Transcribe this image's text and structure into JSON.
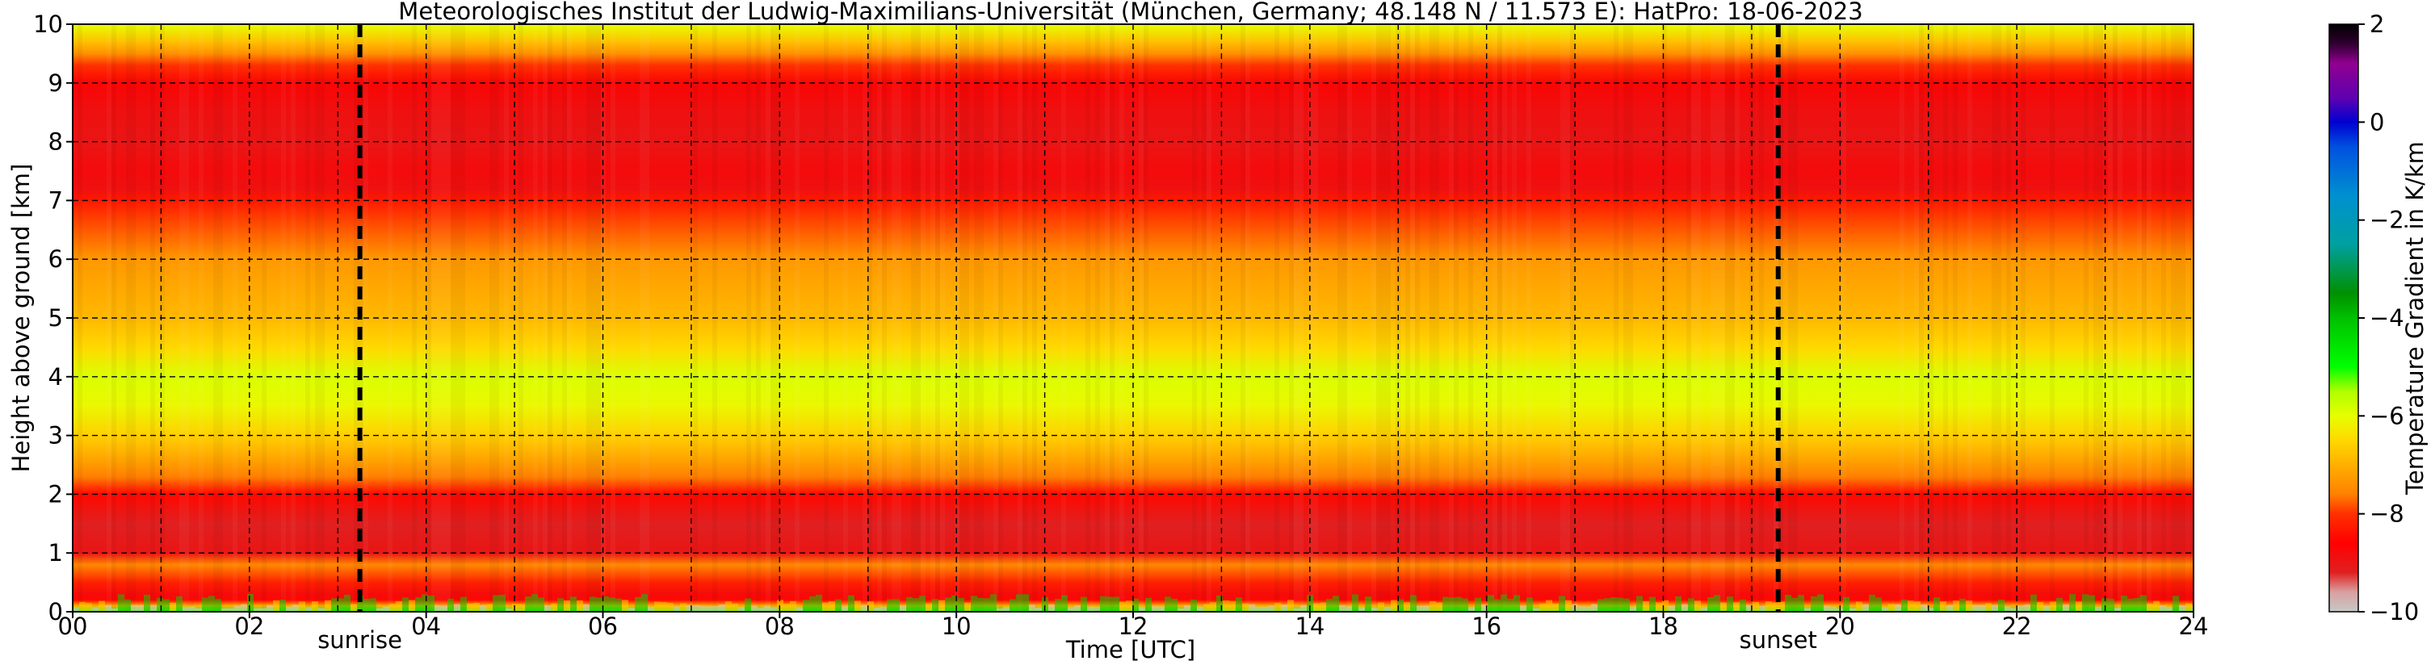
{
  "chart_data": {
    "type": "heatmap",
    "title": "Meteorologisches Institut der Ludwig-Maximilians-Universität (München, Germany; 48.148 N / 11.573 E):    HatPro: 18-06-2023",
    "xlabel": "Time [UTC]",
    "ylabel": "Height above ground [km]",
    "xlim": [
      0,
      24
    ],
    "ylim": [
      0,
      10
    ],
    "x_ticks": [
      "00",
      "02",
      "04",
      "06",
      "08",
      "10",
      "12",
      "14",
      "16",
      "18",
      "20",
      "22",
      "24"
    ],
    "y_ticks": [
      "0",
      "1",
      "2",
      "3",
      "4",
      "5",
      "6",
      "7",
      "8",
      "9",
      "10"
    ],
    "grid": true,
    "colorbar": {
      "label": "Temperature Gradient in K/km",
      "range": [
        -10,
        2
      ],
      "ticks": [
        "−10",
        "−8",
        "−6",
        "−4",
        "−2",
        "0",
        "2"
      ],
      "colors": [
        {
          "value": -10,
          "color": "#c8c8c8"
        },
        {
          "value": -9.6,
          "color": "#d9a0a0"
        },
        {
          "value": -9.2,
          "color": "#e02020"
        },
        {
          "value": -8.6,
          "color": "#ff0000"
        },
        {
          "value": -8.0,
          "color": "#ff3000"
        },
        {
          "value": -7.6,
          "color": "#ff8000"
        },
        {
          "value": -7.0,
          "color": "#ffb000"
        },
        {
          "value": -6.5,
          "color": "#ffd800"
        },
        {
          "value": -6.0,
          "color": "#e6ff00"
        },
        {
          "value": -5.5,
          "color": "#b0ff00"
        },
        {
          "value": -5.0,
          "color": "#00ff00"
        },
        {
          "value": -4.0,
          "color": "#00c000"
        },
        {
          "value": -3.5,
          "color": "#009000"
        },
        {
          "value": -2.5,
          "color": "#00a0a0"
        },
        {
          "value": -1.5,
          "color": "#0090d0"
        },
        {
          "value": -0.5,
          "color": "#0050e0"
        },
        {
          "value": 0.0,
          "color": "#0000d0"
        },
        {
          "value": 0.5,
          "color": "#6000b0"
        },
        {
          "value": 1.2,
          "color": "#900090"
        },
        {
          "value": 1.6,
          "color": "#300030"
        },
        {
          "value": 2.0,
          "color": "#000000"
        }
      ]
    },
    "profile_km": [
      0.0,
      0.1,
      0.2,
      0.3,
      0.5,
      0.8,
      1.0,
      1.5,
      2.0,
      2.3,
      2.7,
      3.0,
      3.5,
      4.0,
      4.5,
      5.0,
      5.5,
      6.0,
      6.5,
      7.0,
      7.2,
      7.5,
      8.0,
      8.5,
      9.0,
      9.3,
      9.5,
      9.7,
      10.0
    ],
    "profile_gradient": [
      -5.0,
      -7.0,
      -8.5,
      -8.8,
      -8.2,
      -7.5,
      -9.0,
      -9.2,
      -8.5,
      -7.6,
      -7.0,
      -6.6,
      -6.1,
      -5.9,
      -6.5,
      -6.9,
      -7.1,
      -7.3,
      -7.8,
      -8.3,
      -8.9,
      -8.8,
      -9.0,
      -8.9,
      -8.7,
      -8.0,
      -7.4,
      -6.8,
      -6.0
    ],
    "vertical_lines": [
      {
        "label": "sunrise",
        "time": 3.25
      },
      {
        "label": "sunset",
        "time": 19.3
      }
    ]
  }
}
